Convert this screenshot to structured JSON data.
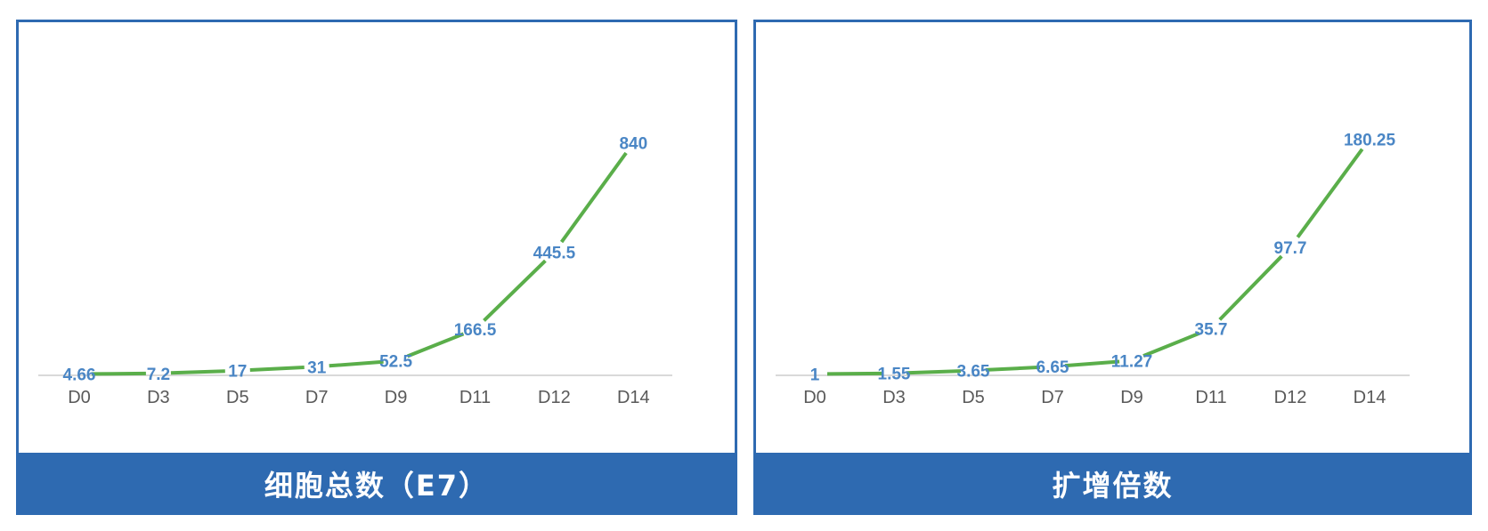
{
  "colors": {
    "frame": "#2e6ab1",
    "line": "#5aae4a",
    "label": "#4a86c5",
    "baseline": "#d9d9d9",
    "tick": "#595959"
  },
  "chart_data": [
    {
      "type": "line",
      "title": "细胞总数（E7）",
      "categories": [
        "D0",
        "D3",
        "D5",
        "D7",
        "D9",
        "D11",
        "D12",
        "D14"
      ],
      "series": [
        {
          "values": [
            4.66,
            7.2,
            17,
            31,
            52.5,
            166.5,
            445.5,
            840
          ],
          "labels": [
            "4.66",
            "7.2",
            "17",
            "31",
            "52.5",
            "166.5",
            "445.5",
            "840"
          ]
        }
      ],
      "xlabel": "",
      "ylabel": "",
      "ylim": [
        0,
        900
      ],
      "grid": false,
      "data_labels": true
    },
    {
      "type": "line",
      "title": "扩增倍数",
      "categories": [
        "D0",
        "D3",
        "D5",
        "D7",
        "D9",
        "D11",
        "D12",
        "D14"
      ],
      "series": [
        {
          "values": [
            1,
            1.55,
            3.65,
            6.65,
            11.27,
            35.7,
            97.7,
            180.25
          ],
          "labels": [
            "1",
            "1.55",
            "3.65",
            "6.65",
            "11.27",
            "35.7",
            "97.7",
            "180.25"
          ]
        }
      ],
      "xlabel": "",
      "ylabel": "",
      "ylim": [
        0,
        190
      ],
      "grid": false,
      "data_labels": true
    }
  ]
}
